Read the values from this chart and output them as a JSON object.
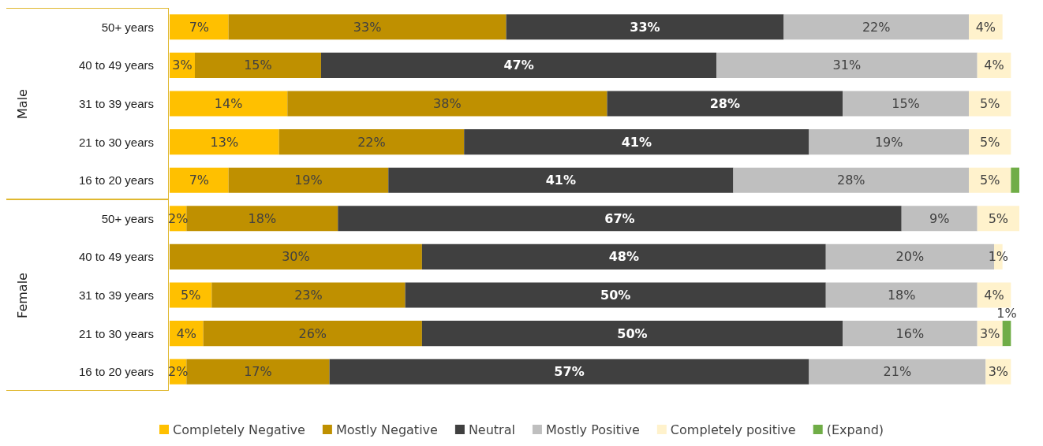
{
  "chart_data": {
    "type": "bar",
    "orientation": "horizontal",
    "stacked": true,
    "categories": [
      "50+ years",
      "40 to 49 years",
      "31 to 39 years",
      "21 to 30 years",
      "16 to 20 years",
      "50+ years",
      "40 to 49 years",
      "31 to 39 years",
      "21 to 30 years",
      "16 to 20 years"
    ],
    "series": [
      {
        "name": "Completely Negative",
        "color": "#ffc000",
        "values": [
          7,
          3,
          14,
          13,
          7,
          2,
          null,
          5,
          4,
          2
        ],
        "value_labels": [
          "7%",
          "3%",
          "14%",
          "13%",
          "7%",
          "2%",
          null,
          "5%",
          "4%",
          "2%"
        ]
      },
      {
        "name": "Mostly Negative",
        "color": "#bf9000",
        "values": [
          33,
          15,
          38,
          22,
          19,
          18,
          30,
          23,
          26,
          17
        ],
        "value_labels": [
          "33%",
          "15%",
          "38%",
          "22%",
          "19%",
          "18%",
          "30%",
          "23%",
          "26%",
          "17%"
        ]
      },
      {
        "name": "Neutral",
        "color": "#404040",
        "values": [
          33,
          47,
          28,
          41,
          41,
          67,
          48,
          50,
          50,
          57
        ],
        "value_labels": [
          "33%",
          "47%",
          "28%",
          "41%",
          "41%",
          "67%",
          "48%",
          "50%",
          "50%",
          "57%"
        ]
      },
      {
        "name": "Mostly Positive",
        "color": "#bfbfbf",
        "values": [
          22,
          31,
          15,
          19,
          28,
          9,
          20,
          18,
          16,
          21
        ],
        "value_labels": [
          "22%",
          "31%",
          "15%",
          "19%",
          "28%",
          "9%",
          "20%",
          "18%",
          "16%",
          "21%"
        ]
      },
      {
        "name": "Completely positive",
        "color": "#fff2cc",
        "values": [
          4,
          4,
          5,
          5,
          5,
          5,
          1,
          4,
          3,
          3
        ],
        "value_labels": [
          "4%",
          "4%",
          "5%",
          "5%",
          "5%",
          "5%",
          "1%",
          "4%",
          "3%",
          "3%"
        ]
      },
      {
        "name": "(Expand)",
        "color": "#70ad47",
        "values": [
          null,
          null,
          null,
          null,
          1,
          null,
          null,
          null,
          1,
          null
        ],
        "value_labels": [
          null,
          null,
          null,
          null,
          null,
          null,
          null,
          null,
          "1%",
          null
        ]
      }
    ],
    "annotations": [
      "Male",
      "Female"
    ],
    "legend": "bottom"
  }
}
